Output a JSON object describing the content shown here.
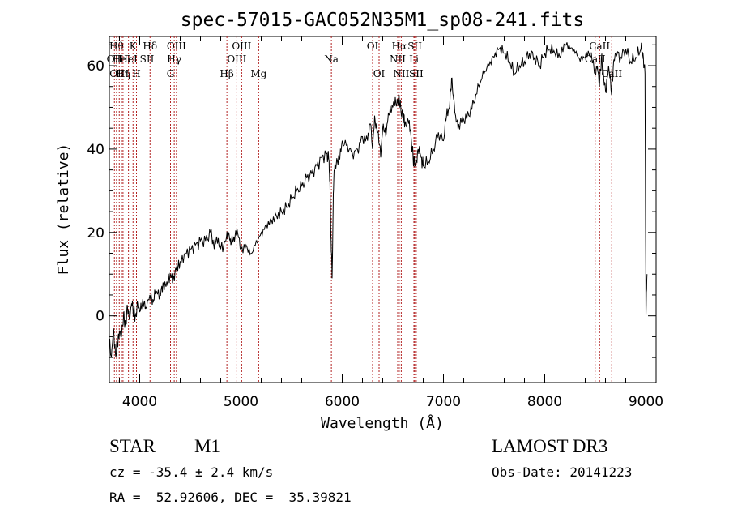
{
  "chart_data": {
    "type": "line",
    "title": "spec-57015-GAC052N35M1_sp08-241.fits",
    "xlabel": "Wavelength (Å)",
    "ylabel": "Flux (relative)",
    "xlim": [
      3700,
      9100
    ],
    "ylim": [
      -16,
      67
    ],
    "xticks": [
      4000,
      5000,
      6000,
      7000,
      8000,
      9000
    ],
    "yticks": [
      0,
      20,
      40,
      60
    ],
    "series": [
      {
        "name": "flux",
        "x": [
          3700,
          3720,
          3740,
          3760,
          3780,
          3800,
          3820,
          3840,
          3860,
          3880,
          3900,
          3920,
          3940,
          3960,
          3980,
          4000,
          4030,
          4060,
          4100,
          4130,
          4160,
          4200,
          4230,
          4260,
          4300,
          4330,
          4360,
          4400,
          4450,
          4500,
          4550,
          4600,
          4650,
          4700,
          4730,
          4760,
          4800,
          4850,
          4880,
          4900,
          4930,
          4960,
          5000,
          5050,
          5100,
          5150,
          5200,
          5250,
          5300,
          5350,
          5400,
          5450,
          5500,
          5550,
          5600,
          5650,
          5700,
          5750,
          5800,
          5850,
          5870,
          5880,
          5890,
          5900,
          5910,
          5920,
          5940,
          5970,
          6000,
          6050,
          6100,
          6150,
          6200,
          6250,
          6280,
          6300,
          6320,
          6350,
          6380,
          6400,
          6430,
          6450,
          6480,
          6500,
          6530,
          6550,
          6560,
          6570,
          6580,
          6600,
          6620,
          6650,
          6680,
          6700,
          6720,
          6750,
          6780,
          6800,
          6850,
          6900,
          6950,
          7000,
          7030,
          7060,
          7080,
          7100,
          7120,
          7150,
          7200,
          7250,
          7300,
          7350,
          7400,
          7450,
          7500,
          7550,
          7600,
          7650,
          7700,
          7750,
          7800,
          7850,
          7900,
          7950,
          8000,
          8050,
          8100,
          8150,
          8200,
          8250,
          8300,
          8350,
          8400,
          8450,
          8500,
          8520,
          8540,
          8560,
          8580,
          8600,
          8630,
          8660,
          8680,
          8700,
          8750,
          8800,
          8850,
          8900,
          8950,
          8970,
          8990,
          9000,
          9010
        ],
        "y": [
          -6,
          -10,
          -3,
          -9,
          -7,
          -4,
          -5,
          0,
          -2,
          2,
          -1,
          3,
          1,
          0,
          3,
          1,
          4,
          2,
          5,
          4,
          6,
          5,
          8,
          7,
          10,
          9,
          11,
          13,
          15,
          16,
          17,
          18,
          18,
          20,
          17,
          19,
          16,
          18,
          20,
          17,
          19,
          21,
          16,
          17,
          15,
          18,
          20,
          22,
          23,
          24,
          25,
          26,
          28,
          30,
          31,
          33,
          34,
          36,
          38,
          39,
          37,
          30,
          18,
          9,
          26,
          35,
          36,
          38,
          42,
          41,
          39,
          40,
          43,
          42,
          46,
          40,
          48,
          44,
          38,
          45,
          43,
          47,
          49,
          50,
          51,
          51,
          52,
          51,
          49,
          48,
          46,
          47,
          43,
          38,
          36,
          40,
          38,
          36,
          37,
          40,
          44,
          42,
          48,
          50,
          57,
          52,
          48,
          46,
          47,
          48,
          51,
          55,
          58,
          60,
          62,
          64,
          63,
          61,
          58,
          60,
          61,
          63,
          62,
          60,
          63,
          64,
          63,
          62,
          65,
          64,
          63,
          61,
          62,
          63,
          58,
          60,
          55,
          62,
          58,
          54,
          60,
          53,
          61,
          63,
          62,
          64,
          61,
          62,
          64,
          63,
          58,
          0,
          10
        ]
      }
    ],
    "line_markers": [
      {
        "wl": 3750,
        "label": "OII",
        "row": 2
      },
      {
        "wl": 3771,
        "label": "Hθ",
        "row": 1
      },
      {
        "wl": 3798,
        "label": "OIII",
        "row": 3
      },
      {
        "wl": 3820,
        "label": "HeI",
        "row": 2
      },
      {
        "wl": 3835,
        "label": "Hη",
        "row": 3
      },
      {
        "wl": 3889,
        "label": "HeI",
        "row": 2
      },
      {
        "wl": 3934,
        "label": "K",
        "row": 1
      },
      {
        "wl": 3968,
        "label": "H",
        "row": 3
      },
      {
        "wl": 4072,
        "label": "SII",
        "row": 2
      },
      {
        "wl": 4102,
        "label": "Hδ",
        "row": 1
      },
      {
        "wl": 4304,
        "label": "G",
        "row": 3
      },
      {
        "wl": 4341,
        "label": "Hγ",
        "row": 2
      },
      {
        "wl": 4363,
        "label": "OIII",
        "row": 1
      },
      {
        "wl": 4861,
        "label": "Hβ",
        "row": 3
      },
      {
        "wl": 4959,
        "label": "OIII",
        "row": 2
      },
      {
        "wl": 5007,
        "label": "OIII",
        "row": 1
      },
      {
        "wl": 5175,
        "label": "Mg",
        "row": 3
      },
      {
        "wl": 5893,
        "label": "Na",
        "row": 2
      },
      {
        "wl": 6300,
        "label": "OI",
        "row": 1
      },
      {
        "wl": 6364,
        "label": "OI",
        "row": 3
      },
      {
        "wl": 6548,
        "label": "NII",
        "row": 2
      },
      {
        "wl": 6563,
        "label": "Hα",
        "row": 1
      },
      {
        "wl": 6583,
        "label": "NII",
        "row": 3
      },
      {
        "wl": 6708,
        "label": "Li",
        "row": 2
      },
      {
        "wl": 6717,
        "label": "SII",
        "row": 1
      },
      {
        "wl": 6731,
        "label": "SII",
        "row": 3
      },
      {
        "wl": 8498,
        "label": "CaII",
        "row": 2
      },
      {
        "wl": 8542,
        "label": "CaII",
        "row": 1
      },
      {
        "wl": 8662,
        "label": "CaII",
        "row": 3
      }
    ]
  },
  "info": {
    "object_class": "STAR",
    "subclass": "M1",
    "velocity": "cz = -35.4 ± 2.4 km/s",
    "coordinates": "RA =  52.92606, DEC =  35.39821",
    "survey": "LAMOST DR3",
    "obs_date": "Obs-Date: 20141223"
  }
}
